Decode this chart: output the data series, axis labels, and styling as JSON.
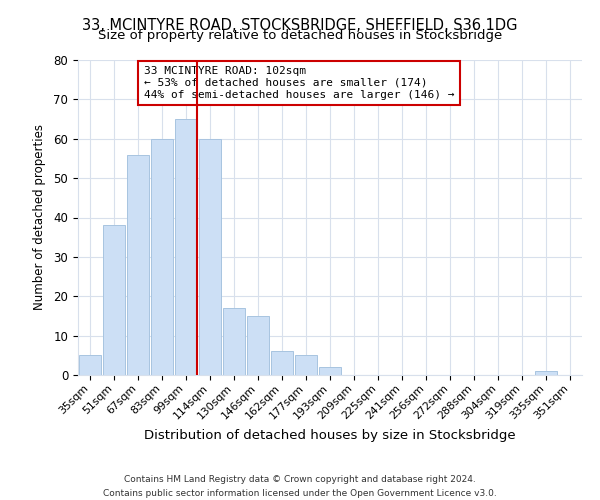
{
  "title_line1": "33, MCINTYRE ROAD, STOCKSBRIDGE, SHEFFIELD, S36 1DG",
  "title_line2": "Size of property relative to detached houses in Stocksbridge",
  "xlabel": "Distribution of detached houses by size in Stocksbridge",
  "ylabel": "Number of detached properties",
  "bar_labels": [
    "35sqm",
    "51sqm",
    "67sqm",
    "83sqm",
    "99sqm",
    "114sqm",
    "130sqm",
    "146sqm",
    "162sqm",
    "177sqm",
    "193sqm",
    "209sqm",
    "225sqm",
    "241sqm",
    "256sqm",
    "272sqm",
    "288sqm",
    "304sqm",
    "319sqm",
    "335sqm",
    "351sqm"
  ],
  "bar_values": [
    5,
    38,
    56,
    60,
    65,
    60,
    17,
    15,
    6,
    5,
    2,
    0,
    0,
    0,
    0,
    0,
    0,
    0,
    0,
    1,
    0
  ],
  "bar_color": "#ccdff5",
  "bar_edge_color": "#a8c4e0",
  "vline_color": "#cc0000",
  "ylim": [
    0,
    80
  ],
  "yticks": [
    0,
    10,
    20,
    30,
    40,
    50,
    60,
    70,
    80
  ],
  "annotation_title": "33 MCINTYRE ROAD: 102sqm",
  "annotation_line2": "← 53% of detached houses are smaller (174)",
  "annotation_line3": "44% of semi-detached houses are larger (146) →",
  "footer_line1": "Contains HM Land Registry data © Crown copyright and database right 2024.",
  "footer_line2": "Contains public sector information licensed under the Open Government Licence v3.0.",
  "background_color": "#ffffff",
  "grid_color": "#d8e0ec"
}
